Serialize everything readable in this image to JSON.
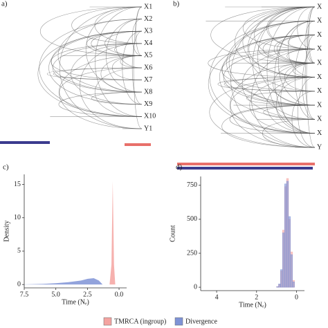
{
  "chart_data": [
    {
      "type": "tree",
      "panel_label": "a)",
      "leaves": [
        "X1",
        "X2",
        "X3",
        "X4",
        "X5",
        "X6",
        "X7",
        "X8",
        "X9",
        "X10",
        "Y1"
      ]
    },
    {
      "type": "tree",
      "panel_label": "b)",
      "leaves": [
        "X",
        "X",
        "X",
        "X",
        "X",
        "X",
        "X",
        "X",
        "X",
        "X",
        "Y"
      ]
    },
    {
      "type": "density",
      "panel_label": "c)",
      "x_label": "Time (Nₑ)",
      "y_label": "Density",
      "xlim": [
        7.5,
        -0.6
      ],
      "xticks": [
        7.5,
        {
          "value": 5,
          "label": "5.0"
        },
        2.5,
        {
          "value": 0,
          "label": "0.0"
        }
      ],
      "ylim": [
        -0.5,
        16.5
      ],
      "yticks": [
        0,
        5,
        10,
        15
      ],
      "series": [
        {
          "name": "TMRCA (ingroup)",
          "color": "#f4a3a0",
          "x": [
            0.75,
            0.6,
            0.5,
            0.4,
            0.3
          ],
          "values": [
            0,
            3,
            15.5,
            3,
            0
          ]
        },
        {
          "name": "Divergence",
          "color": "#7f93d6",
          "x": [
            7.5,
            6,
            5,
            4,
            3,
            2.5,
            2,
            1.6,
            1.3
          ],
          "values": [
            0.02,
            0.1,
            0.2,
            0.35,
            0.6,
            0.85,
            0.95,
            0.6,
            0
          ]
        }
      ]
    },
    {
      "type": "histogram",
      "panel_label": "d)",
      "x_label": "Time (Nₑ)",
      "y_label": "Count",
      "xlim": [
        4.8,
        -0.4
      ],
      "xticks": [
        4,
        2,
        0
      ],
      "ylim": [
        -25,
        815
      ],
      "yticks": [
        0,
        250,
        500,
        750
      ],
      "bins": [
        0,
        0.1,
        0.2,
        0.3,
        0.4,
        0.5,
        0.6,
        0.7,
        0.8,
        0.9,
        1.0
      ],
      "series": [
        {
          "name": "TMRCA (ingroup)",
          "color": "#f4a3a0",
          "values": [
            0,
            50,
            260,
            500,
            800,
            740,
            420,
            120,
            20,
            5
          ]
        },
        {
          "name": "Divergence",
          "color": "#7f93d6",
          "values": [
            0,
            40,
            240,
            520,
            780,
            760,
            400,
            130,
            25,
            5
          ]
        }
      ]
    }
  ]
}
